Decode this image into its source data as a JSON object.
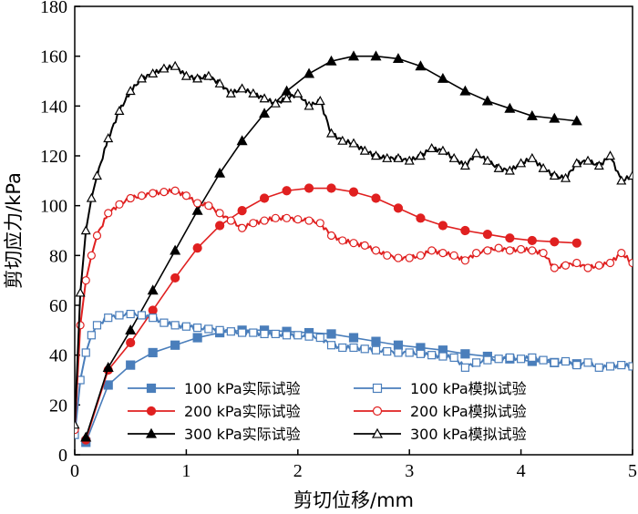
{
  "chart_data": {
    "type": "line",
    "title": "",
    "xlabel": "剪切位移/mm",
    "ylabel": "剪切应力/kPa",
    "xlim": [
      0,
      5
    ],
    "ylim": [
      0,
      180
    ],
    "x_ticks": [
      "0",
      "1",
      "2",
      "3",
      "4",
      "5"
    ],
    "y_ticks": [
      "0",
      "20",
      "40",
      "60",
      "80",
      "100",
      "120",
      "140",
      "160",
      "180"
    ],
    "grid": false,
    "legend_position": "bottom-center",
    "series": [
      {
        "name": "100 kPa实际试验",
        "color": "#4a7ebb",
        "marker": "filled-square",
        "kind": "actual",
        "x": [
          0.1,
          0.3,
          0.5,
          0.7,
          0.9,
          1.1,
          1.3,
          1.5,
          1.7,
          1.9,
          2.1,
          2.3,
          2.5,
          2.7,
          2.9,
          3.1,
          3.3,
          3.5,
          3.7,
          3.9,
          4.1,
          4.3,
          4.5
        ],
        "y": [
          5,
          28,
          36,
          41,
          44,
          47,
          49,
          50,
          50,
          49.5,
          49,
          48.5,
          47,
          45.5,
          44,
          43,
          42,
          40.5,
          39.5,
          38.5,
          37.5,
          37,
          36.5
        ]
      },
      {
        "name": "200 kPa实际试验",
        "color": "#e02020",
        "marker": "filled-circle",
        "kind": "actual",
        "x": [
          0.1,
          0.3,
          0.5,
          0.7,
          0.9,
          1.1,
          1.3,
          1.5,
          1.7,
          1.9,
          2.1,
          2.3,
          2.5,
          2.7,
          2.9,
          3.1,
          3.3,
          3.5,
          3.7,
          3.9,
          4.1,
          4.3,
          4.5
        ],
        "y": [
          6,
          34,
          45,
          58,
          71,
          83,
          92,
          98,
          103,
          106,
          107,
          107,
          105.5,
          103,
          99,
          95,
          92,
          90,
          88.5,
          87,
          86,
          85.5,
          85
        ]
      },
      {
        "name": "300 kPa实际试验",
        "color": "#000000",
        "marker": "filled-triangle",
        "kind": "actual",
        "x": [
          0.1,
          0.3,
          0.5,
          0.7,
          0.9,
          1.1,
          1.3,
          1.5,
          1.7,
          1.9,
          2.1,
          2.3,
          2.5,
          2.7,
          2.9,
          3.1,
          3.3,
          3.5,
          3.7,
          3.9,
          4.1,
          4.3,
          4.5
        ],
        "y": [
          7,
          35,
          50,
          66,
          82,
          98,
          113,
          126,
          137,
          146,
          153,
          158,
          160,
          160,
          159,
          156,
          151,
          146,
          142,
          139,
          136,
          135,
          134
        ]
      },
      {
        "name": "100 kPa模拟试验",
        "color": "#4a7ebb",
        "marker": "open-square",
        "kind": "simulated",
        "x": [
          0,
          0.05,
          0.1,
          0.15,
          0.2,
          0.3,
          0.4,
          0.5,
          0.6,
          0.7,
          0.8,
          0.9,
          1.0,
          1.1,
          1.2,
          1.3,
          1.4,
          1.5,
          1.6,
          1.7,
          1.8,
          1.9,
          2.0,
          2.1,
          2.2,
          2.3,
          2.4,
          2.5,
          2.6,
          2.7,
          2.8,
          2.9,
          3.0,
          3.1,
          3.2,
          3.3,
          3.4,
          3.5,
          3.6,
          3.7,
          3.8,
          3.9,
          4.0,
          4.1,
          4.2,
          4.3,
          4.4,
          4.5,
          4.6,
          4.7,
          4.8,
          4.9,
          5.0
        ],
        "y": [
          8,
          30,
          41,
          48,
          52,
          55,
          56,
          56.5,
          56,
          55,
          53,
          52,
          51.5,
          51,
          50.5,
          50,
          49.5,
          49,
          49,
          48.5,
          48.5,
          48,
          48,
          47.5,
          47,
          44,
          43,
          43,
          42.5,
          42,
          41.5,
          41,
          41,
          40.5,
          40,
          39.5,
          39,
          35,
          37,
          38,
          38.5,
          39,
          38.5,
          39,
          38,
          37,
          37.5,
          36,
          37,
          35,
          35.5,
          36,
          35.5
        ]
      },
      {
        "name": "200 kPa模拟试验",
        "color": "#e02020",
        "marker": "open-circle",
        "kind": "simulated",
        "x": [
          0,
          0.05,
          0.1,
          0.15,
          0.2,
          0.3,
          0.4,
          0.5,
          0.6,
          0.7,
          0.8,
          0.9,
          1.0,
          1.1,
          1.2,
          1.3,
          1.4,
          1.5,
          1.6,
          1.7,
          1.8,
          1.9,
          2.0,
          2.1,
          2.2,
          2.3,
          2.4,
          2.5,
          2.6,
          2.7,
          2.8,
          2.9,
          3.0,
          3.1,
          3.2,
          3.3,
          3.4,
          3.5,
          3.6,
          3.7,
          3.8,
          3.9,
          4.0,
          4.1,
          4.2,
          4.3,
          4.4,
          4.5,
          4.6,
          4.7,
          4.8,
          4.9,
          5.0
        ],
        "y": [
          10,
          52,
          70,
          80,
          88,
          97,
          100.5,
          103,
          104,
          105,
          105.5,
          106,
          104,
          101,
          100,
          97,
          94,
          91,
          93,
          94,
          95,
          95,
          94.5,
          94,
          93,
          88,
          86,
          85,
          84,
          82,
          80,
          79,
          79,
          80,
          82,
          81,
          80,
          78,
          81,
          82,
          83,
          82,
          82.5,
          82,
          81,
          75,
          76,
          77,
          75,
          76,
          77,
          81,
          77
        ]
      },
      {
        "name": "300 kPa模拟试验",
        "color": "#000000",
        "marker": "open-triangle",
        "kind": "simulated",
        "x": [
          0,
          0.05,
          0.1,
          0.15,
          0.2,
          0.3,
          0.4,
          0.5,
          0.6,
          0.7,
          0.8,
          0.9,
          1.0,
          1.1,
          1.2,
          1.3,
          1.4,
          1.5,
          1.6,
          1.7,
          1.8,
          1.9,
          2.0,
          2.1,
          2.2,
          2.3,
          2.4,
          2.5,
          2.6,
          2.7,
          2.8,
          2.9,
          3.0,
          3.1,
          3.2,
          3.3,
          3.4,
          3.5,
          3.6,
          3.7,
          3.8,
          3.9,
          4.0,
          4.1,
          4.2,
          4.3,
          4.4,
          4.5,
          4.6,
          4.7,
          4.8,
          4.9,
          5.0
        ],
        "y": [
          12,
          65,
          90,
          103,
          112,
          127,
          138,
          146,
          151,
          153,
          155,
          156,
          152,
          151,
          152,
          149,
          145,
          147,
          145,
          143,
          141,
          143,
          145,
          140,
          142,
          129,
          126,
          125,
          122,
          120,
          119,
          119,
          118,
          120,
          123,
          122,
          119,
          116,
          121,
          118,
          115,
          114,
          117,
          119,
          115,
          112,
          111,
          117,
          118,
          116,
          120,
          110,
          112
        ]
      }
    ]
  }
}
